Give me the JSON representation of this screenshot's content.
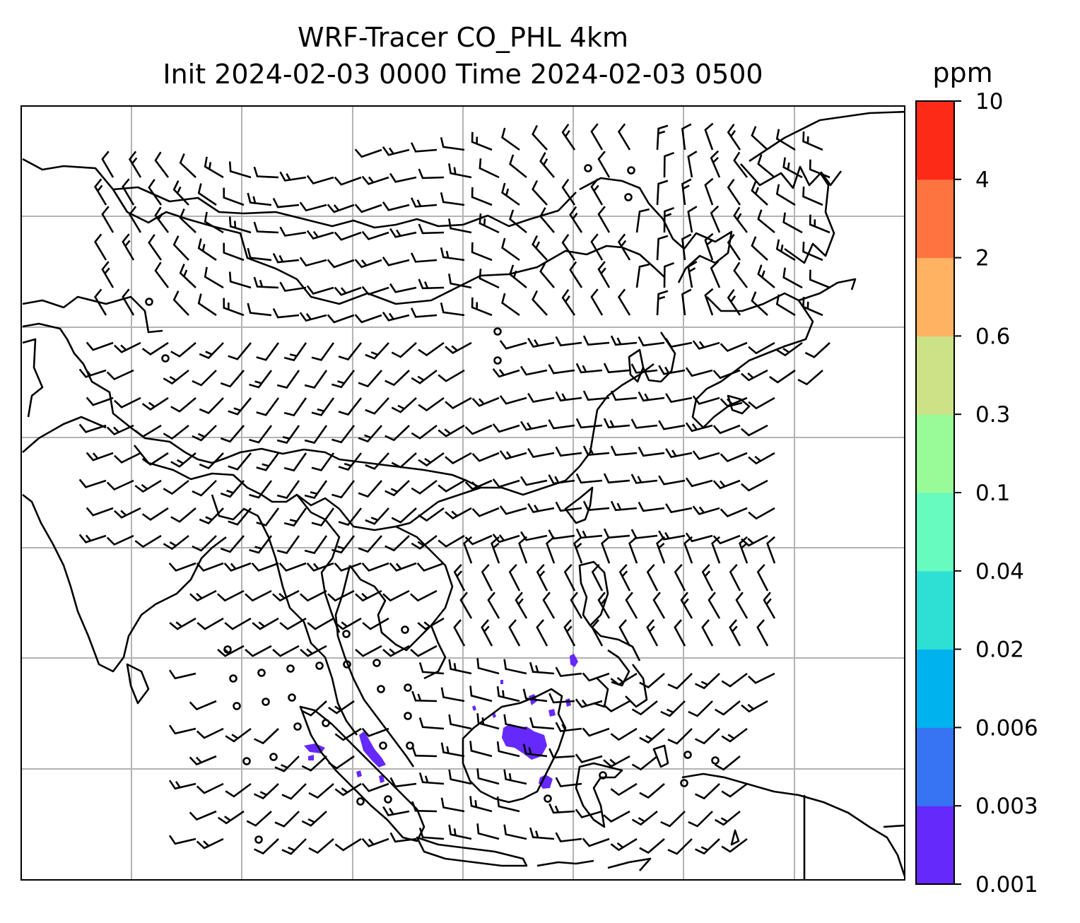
{
  "title": {
    "line1": "WRF-Tracer CO_PHL 4km",
    "line2": "Init 2024-02-03 0000 Time 2024-02-03 0500"
  },
  "colorbar": {
    "unit": "ppm",
    "levels": [
      "0.001",
      "0.003",
      "0.006",
      "0.02",
      "0.04",
      "0.1",
      "0.3",
      "0.6",
      "2",
      "4",
      "10"
    ],
    "colors": [
      "#6629fb",
      "#3674f4",
      "#00b2ee",
      "#2ee0d4",
      "#67fbc0",
      "#99fa98",
      "#cde187",
      "#feb262",
      "#fe7440",
      "#fe2a18"
    ]
  },
  "map": {
    "tracer_color": "#6629fb",
    "gridlines": true,
    "wind_field": "wind barbs",
    "tracer_patches": "tracer CO concentration"
  }
}
